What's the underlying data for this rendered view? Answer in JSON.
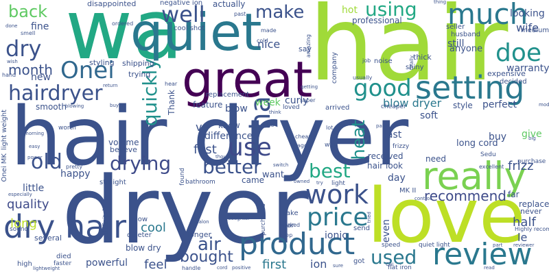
{
  "words": [
    {
      "text": "hair dryer",
      "color": "#3b528b"
    },
    {
      "text": "dryer",
      "color": "#3b528b"
    },
    {
      "text": "hair",
      "color": "#a0da39"
    },
    {
      "text": "wa",
      "color": "#22a884"
    },
    {
      "text": "quiet",
      "color": "#2a788e"
    },
    {
      "text": "love",
      "color": "#bddf26"
    },
    {
      "text": "great",
      "color": "#440154"
    },
    {
      "text": "really",
      "color": "#7ad151"
    },
    {
      "text": "setting",
      "color": "#2a788e"
    },
    {
      "text": "much",
      "color": "#2a788e"
    },
    {
      "text": "dry hair",
      "color": "#3b528b"
    },
    {
      "text": "product",
      "color": "#31688e"
    },
    {
      "text": "review",
      "color": "#2a788e"
    },
    {
      "text": "use",
      "color": "#3e4a89"
    },
    {
      "text": "good",
      "color": "#21918c"
    },
    {
      "text": "hairdryer",
      "color": "#3b528b"
    },
    {
      "text": "Onei",
      "color": "#31688e"
    },
    {
      "text": "work",
      "color": "#3b528b"
    },
    {
      "text": "price",
      "color": "#2a788e"
    },
    {
      "text": "ha",
      "color": "#3b528b"
    },
    {
      "text": "doe",
      "color": "#21918c"
    },
    {
      "text": "drying",
      "color": "#3e4a89"
    },
    {
      "text": "better",
      "color": "#3b528b"
    },
    {
      "text": "best",
      "color": "#22a884"
    },
    {
      "text": "old",
      "color": "#3b528b"
    },
    {
      "text": "dry",
      "color": "#3b528b"
    },
    {
      "text": "well",
      "color": "#3b528b"
    },
    {
      "text": "make",
      "color": "#3b528b"
    },
    {
      "text": "using",
      "color": "#22a884"
    },
    {
      "text": "quickly",
      "color": "#21918c"
    },
    {
      "text": "heat",
      "color": "#21918c"
    },
    {
      "text": "used",
      "color": "#2a788e"
    },
    {
      "text": "bought",
      "color": "#3b528b"
    },
    {
      "text": "air",
      "color": "#3b528b"
    },
    {
      "text": "back",
      "color": "#5ec962"
    },
    {
      "text": "month",
      "color": "#3b528b"
    },
    {
      "text": "recommend",
      "color": "#3e4a89"
    },
    {
      "text": "blow dryer",
      "color": "#2a788e"
    },
    {
      "text": "quality",
      "color": "#3e4a89"
    },
    {
      "text": "long",
      "color": "#bddf26"
    },
    {
      "text": "feel",
      "color": "#3b528b"
    },
    {
      "text": "cool",
      "color": "#2a788e"
    },
    {
      "text": "frizz",
      "color": "#3b528b"
    },
    {
      "text": "fast",
      "color": "#3b528b"
    },
    {
      "text": "first",
      "color": "#2a788e"
    },
    {
      "text": "ve",
      "color": "#3b528b"
    },
    {
      "text": "difference",
      "color": "#3b528b"
    },
    {
      "text": "half",
      "color": "#3b528b"
    },
    {
      "text": "powerful",
      "color": "#3b528b"
    },
    {
      "text": "le",
      "color": "#3b528b"
    },
    {
      "text": "even",
      "color": "#3b528b"
    },
    {
      "text": "ion",
      "color": "#3b528b"
    },
    {
      "text": "doe",
      "color": "#21918c"
    },
    {
      "text": "week",
      "color": "#5ec962"
    },
    {
      "text": "wife",
      "color": "#3b528b"
    },
    {
      "text": "warranty",
      "color": "#3b528b"
    },
    {
      "text": "hot",
      "color": "#a0da39"
    },
    {
      "text": "nice",
      "color": "#3b528b"
    },
    {
      "text": "actually",
      "color": "#3b528b"
    },
    {
      "text": "disappointed",
      "color": "#3b528b"
    },
    {
      "text": "negative ion",
      "color": "#3b528b"
    },
    {
      "text": "fine",
      "color": "#3b528b"
    },
    {
      "text": "new",
      "color": "#3b528b"
    },
    {
      "text": "smooth",
      "color": "#3b528b"
    },
    {
      "text": "curly",
      "color": "#3b528b"
    },
    {
      "text": "still",
      "color": "#3b528b"
    },
    {
      "text": "anyone",
      "color": "#3b528b"
    },
    {
      "text": "looking",
      "color": "#3b528b"
    },
    {
      "text": "perfect",
      "color": "#3b528b"
    },
    {
      "text": "style",
      "color": "#3b528b"
    },
    {
      "text": "give",
      "color": "#5ec962"
    },
    {
      "text": "long cord",
      "color": "#3b528b"
    },
    {
      "text": "buy",
      "color": "#3b528b"
    },
    {
      "text": "soft",
      "color": "#3b528b"
    },
    {
      "text": "last",
      "color": "#3b528b"
    },
    {
      "text": "received",
      "color": "#3b528b"
    },
    {
      "text": "need",
      "color": "#3b528b"
    },
    {
      "text": "day",
      "color": "#3b528b"
    },
    {
      "text": "want",
      "color": "#3b528b"
    },
    {
      "text": "hair look",
      "color": "#3b528b"
    },
    {
      "text": "came",
      "color": "#3b528b"
    },
    {
      "text": "blow",
      "color": "#3b528b"
    },
    {
      "text": "know",
      "color": "#3b528b"
    },
    {
      "text": "feature",
      "color": "#3b528b"
    },
    {
      "text": "ionic",
      "color": "#3b528b"
    },
    {
      "text": "blow dry",
      "color": "#3b528b"
    },
    {
      "text": "happy",
      "color": "#3b528b"
    },
    {
      "text": "little",
      "color": "#3b528b"
    },
    {
      "text": "volume",
      "color": "#3b528b"
    },
    {
      "text": "light weight",
      "color": "#3b528b"
    },
    {
      "text": "Onei MK",
      "color": "#3b528b"
    },
    {
      "text": "replace",
      "color": "#3b528b"
    },
    {
      "text": "far",
      "color": "#3b528b"
    },
    {
      "text": "replacement",
      "color": "#3b528b"
    },
    {
      "text": "Thank",
      "color": "#3b528b"
    },
    {
      "text": "trying",
      "color": "#3b528b"
    },
    {
      "text": "shipping",
      "color": "#3b528b"
    },
    {
      "text": "styling",
      "color": "#3b528b"
    },
    {
      "text": "cool shot",
      "color": "#3b528b"
    },
    {
      "text": "professional",
      "color": "#3b528b"
    },
    {
      "text": "noise",
      "color": "#3b528b"
    },
    {
      "text": "thick",
      "color": "#3b528b"
    },
    {
      "text": "shiny",
      "color": "#3b528b"
    },
    {
      "text": "company",
      "color": "#3b528b"
    },
    {
      "text": "expensive",
      "color": "#3b528b"
    },
    {
      "text": "decided",
      "color": "#3b528b"
    },
    {
      "text": "medium",
      "color": "#3b528b"
    },
    {
      "text": "husband",
      "color": "#3b528b"
    },
    {
      "text": "seller",
      "color": "#3b528b"
    },
    {
      "text": "say",
      "color": "#3b528b"
    },
    {
      "text": "straight",
      "color": "#3b528b"
    },
    {
      "text": "pretty",
      "color": "#3b528b"
    },
    {
      "text": "believe",
      "color": "#3b528b"
    },
    {
      "text": "worth",
      "color": "#3b528b"
    },
    {
      "text": "several",
      "color": "#3b528b"
    },
    {
      "text": "high",
      "color": "#3b528b"
    },
    {
      "text": "died",
      "color": "#3b528b"
    },
    {
      "text": "faster",
      "color": "#3b528b"
    },
    {
      "text": "longer",
      "color": "#3b528b"
    },
    {
      "text": "quieter",
      "color": "#3b528b"
    },
    {
      "text": "low",
      "color": "#3b528b"
    },
    {
      "text": "definitely",
      "color": "#3b528b"
    },
    {
      "text": "bathroom",
      "color": "#3b528b"
    },
    {
      "text": "found",
      "color": "#3b528b"
    },
    {
      "text": "MK II",
      "color": "#3b528b"
    },
    {
      "text": "purchased",
      "color": "#3b528b"
    },
    {
      "text": "star",
      "color": "#3b528b"
    },
    {
      "text": "take",
      "color": "#3b528b"
    },
    {
      "text": "worked",
      "color": "#3b528b"
    },
    {
      "text": "keep",
      "color": "#3b528b"
    },
    {
      "text": "send",
      "color": "#3b528b"
    },
    {
      "text": "speed",
      "color": "#3b528b"
    },
    {
      "text": "quiet light",
      "color": "#3b528b"
    },
    {
      "text": "flat iron",
      "color": "#3b528b"
    },
    {
      "text": "got",
      "color": "#3b528b"
    },
    {
      "text": "Highly recommend",
      "color": "#3b528b"
    },
    {
      "text": "never",
      "color": "#3b528b"
    },
    {
      "text": "purchase",
      "color": "#3b528b"
    },
    {
      "text": "excellent",
      "color": "#3b528b"
    },
    {
      "text": "Sedu",
      "color": "#3b528b"
    },
    {
      "text": "frizzy",
      "color": "#3b528b"
    },
    {
      "text": "cheaper",
      "color": "#3b528b"
    },
    {
      "text": "arrived",
      "color": "#3b528b"
    },
    {
      "text": "loved",
      "color": "#3b528b"
    },
    {
      "text": "super",
      "color": "#3b528b"
    },
    {
      "text": "usually",
      "color": "#3b528b"
    },
    {
      "text": "job",
      "color": "#3b528b"
    },
    {
      "text": "amazing",
      "color": "#3b528b"
    },
    {
      "text": "made",
      "color": "#3b528b"
    },
    {
      "text": "past",
      "color": "#3b528b"
    },
    {
      "text": "cold",
      "color": "#3b528b"
    },
    {
      "text": "ordered",
      "color": "#3b528b"
    },
    {
      "text": "smell",
      "color": "#3b528b"
    },
    {
      "text": "hand",
      "color": "#3b528b"
    },
    {
      "text": "hear",
      "color": "#3b528b"
    },
    {
      "text": "blowing",
      "color": "#3b528b"
    },
    {
      "text": "buying",
      "color": "#3b528b"
    },
    {
      "text": "easy",
      "color": "#3b528b"
    },
    {
      "text": "power",
      "color": "#3b528b"
    },
    {
      "text": "morning",
      "color": "#3b528b"
    },
    {
      "text": "especially",
      "color": "#3b528b"
    },
    {
      "text": "lightweight",
      "color": "#3b528b"
    },
    {
      "text": "sound",
      "color": "#3b528b"
    },
    {
      "text": "salon",
      "color": "#3b528b"
    },
    {
      "text": "daughter",
      "color": "#3b528b"
    },
    {
      "text": "positive",
      "color": "#3b528b"
    },
    {
      "text": "cord",
      "color": "#3b528b"
    },
    {
      "text": "handle",
      "color": "#3b528b"
    },
    {
      "text": "sure",
      "color": "#3b528b"
    },
    {
      "text": "Chi",
      "color": "#3b528b"
    },
    {
      "text": "part",
      "color": "#3b528b"
    },
    {
      "text": "reviewer",
      "color": "#3b528b"
    },
    {
      "text": "control",
      "color": "#3b528b"
    },
    {
      "text": "ago",
      "color": "#3b528b"
    },
    {
      "text": "cheap",
      "color": "#3b528b"
    },
    {
      "text": "lot",
      "color": "#3b528b"
    },
    {
      "text": "paid",
      "color": "#3b528b"
    },
    {
      "text": "way",
      "color": "#3b528b"
    },
    {
      "text": "switch",
      "color": "#3b528b"
    },
    {
      "text": "owned",
      "color": "#3b528b"
    },
    {
      "text": "try",
      "color": "#3b528b"
    },
    {
      "text": "light",
      "color": "#3b528b"
    },
    {
      "text": "thought",
      "color": "#3b528b"
    },
    {
      "text": "glad",
      "color": "#3b528b"
    },
    {
      "text": "think",
      "color": "#3b528b"
    },
    {
      "text": "getting",
      "color": "#3b528b"
    },
    {
      "text": "tried",
      "color": "#3b528b"
    },
    {
      "text": "finally",
      "color": "#3b528b"
    },
    {
      "text": "big",
      "color": "#3b528b"
    },
    {
      "text": "thing",
      "color": "#3b528b"
    },
    {
      "text": "done",
      "color": "#3b528b"
    },
    {
      "text": "return",
      "color": "#3b528b"
    },
    {
      "text": "read",
      "color": "#3b528b"
    },
    {
      "text": "model",
      "color": "#3b528b"
    },
    {
      "text": "wish",
      "color": "#3b528b"
    }
  ]
}
